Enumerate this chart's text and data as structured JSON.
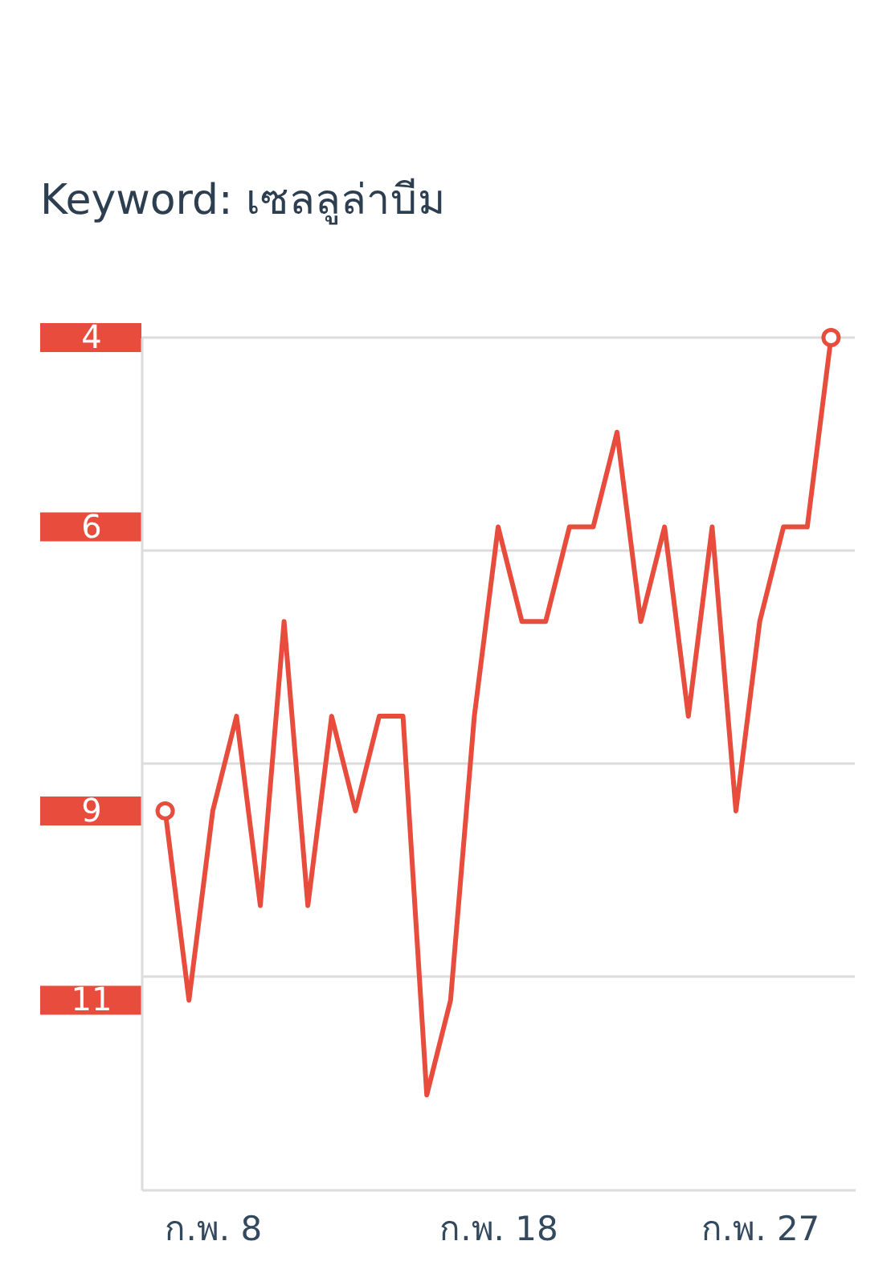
{
  "chart_data": {
    "type": "line",
    "title": "Keyword: เซลลูล่าบีม",
    "categories": [
      null,
      null,
      "ก.พ. 8",
      null,
      null,
      null,
      null,
      null,
      null,
      null,
      null,
      null,
      null,
      null,
      "ก.พ. 18",
      null,
      null,
      null,
      null,
      null,
      null,
      null,
      null,
      null,
      null,
      "ก.พ. 27",
      null,
      null,
      null
    ],
    "series": [
      {
        "color": "#e74c3c",
        "values": [
          9,
          11,
          9,
          8,
          10,
          7,
          10,
          8,
          9,
          8,
          8,
          12,
          11,
          8,
          6,
          7,
          7,
          6,
          6,
          5,
          7,
          6,
          8,
          6,
          9,
          7,
          6,
          6,
          4
        ]
      },
      {
        "type": "scatter",
        "color": "#e74c3c",
        "marker": "circle",
        "values": [
          9,
          null,
          null,
          null,
          null,
          null,
          null,
          null,
          null,
          null,
          null,
          null,
          null,
          null,
          null,
          null,
          null,
          null,
          null,
          null,
          null,
          null,
          null,
          null,
          null,
          null,
          null,
          null,
          4
        ]
      }
    ],
    "ylim": [
      13,
      4
    ],
    "yticks": [
      4,
      6,
      9,
      11,
      {
        "value": 6.25,
        "label": null
      },
      {
        "value": 8.5,
        "label": null
      },
      {
        "value": 10.75,
        "label": null
      }
    ],
    "grid": "y",
    "marker": "none",
    "line_style": "solid"
  }
}
